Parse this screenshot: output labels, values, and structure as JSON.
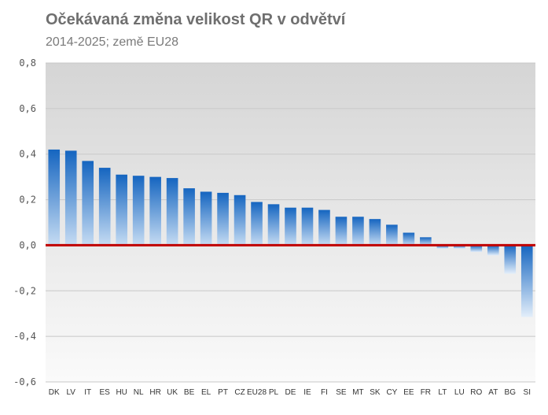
{
  "title": "Očekávaná změna velikost QR v odvětví",
  "subtitle": "2014-2025; země EU28",
  "colors": {
    "bar_top": "#1565c0",
    "bar_bottom": "#c6dcf3",
    "zero_line": "#c00000",
    "grid": "#c8c8c8"
  },
  "chart_data": {
    "type": "bar",
    "title": "Očekávaná změna velikost QR v odvětví",
    "subtitle": "2014-2025; země EU28",
    "xlabel": "",
    "ylabel": "",
    "ylim": [
      -0.6,
      0.8
    ],
    "yticks": [
      0.8,
      0.6,
      0.4,
      0.2,
      0.0,
      -0.2,
      -0.4,
      -0.6
    ],
    "ytick_labels": [
      "0,8",
      "0,6",
      "0,4",
      "0,2",
      "0,0",
      "-0,2",
      "-0,4",
      "-0,6"
    ],
    "grid": true,
    "categories": [
      "DK",
      "LV",
      "IT",
      "ES",
      "HU",
      "NL",
      "HR",
      "UK",
      "BE",
      "EL",
      "PT",
      "CZ",
      "EU28",
      "PL",
      "DE",
      "IE",
      "FI",
      "SE",
      "MT",
      "SK",
      "CY",
      "EE",
      "FR",
      "LT",
      "LU",
      "RO",
      "AT",
      "BG",
      "SI"
    ],
    "values": [
      0.42,
      0.415,
      0.37,
      0.34,
      0.31,
      0.305,
      0.3,
      0.295,
      0.25,
      0.235,
      0.23,
      0.22,
      0.19,
      0.18,
      0.165,
      0.165,
      0.155,
      0.125,
      0.125,
      0.115,
      0.09,
      0.055,
      0.035,
      -0.015,
      -0.015,
      -0.03,
      -0.045,
      -0.125,
      -0.315
    ]
  }
}
